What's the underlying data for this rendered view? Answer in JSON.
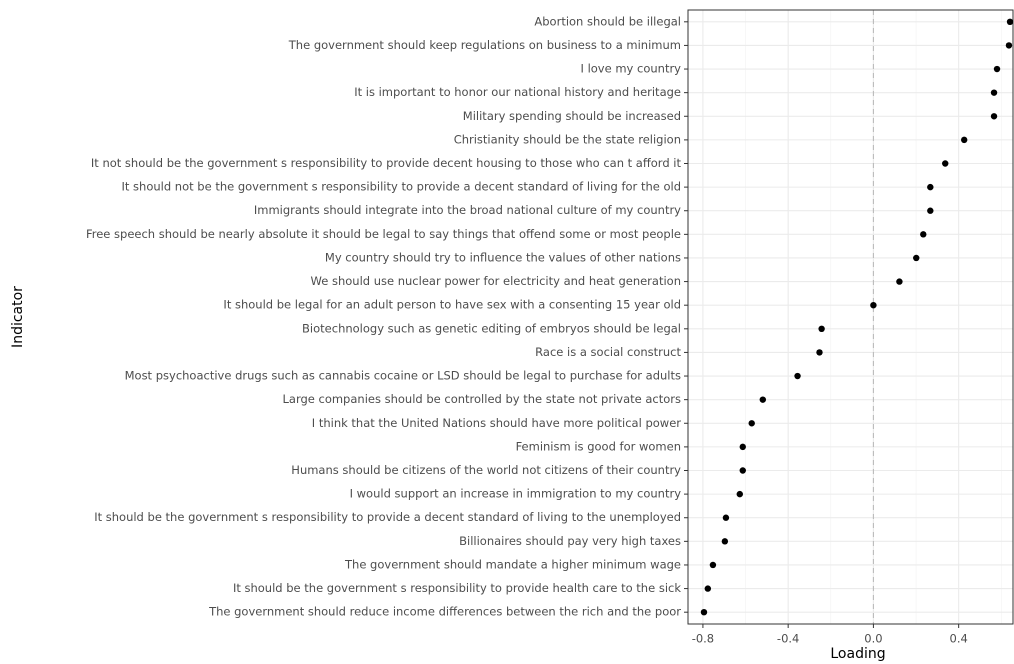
{
  "chart_data": {
    "type": "dot",
    "x_label": "Loading",
    "y_label": "Indicator",
    "categories": [
      "Abortion should be illegal",
      "The government should keep regulations on business to a minimum",
      "I love my country",
      "It is important to honor our national history and heritage",
      "Military spending should be increased",
      "Christianity should be the state religion",
      "It not should be the government s responsibility to provide decent housing to those who can t afford it",
      "It should not be the government s responsibility to provide a decent standard of living for the old",
      "Immigrants should integrate into the broad national culture of my country",
      "Free speech should be nearly absolute it should be legal to say things that offend some or most people",
      "My country should try to influence the values of other nations",
      "We should use nuclear power for electricity and heat generation",
      "It should be legal for an adult person to have sex with a consenting 15 year old",
      "Biotechnology such as genetic editing of embryos should be legal",
      "Race is a social construct",
      "Most psychoactive drugs such as cannabis cocaine or LSD should be legal to purchase for adults",
      "Large companies should be controlled by the state not private actors",
      "I think that the United Nations should have more political power",
      "Feminism is good for women",
      "Humans should be citizens of the world not citizens of their country",
      "I would support an increase in immigration to my country",
      "It should be the government s responsibility to provide a decent standard of living to the unemployed",
      "Billionaires should pay very high taxes",
      "The government should mandate a higher minimum wage",
      "It should be the government s responsibility to provide health care to the sick",
      "The government should reduce income differences between the rich and the poor"
    ],
    "values": [
      0.641,
      0.636,
      0.58,
      0.566,
      0.566,
      0.426,
      0.337,
      0.267,
      0.267,
      0.234,
      0.201,
      0.122,
      0.0,
      -0.243,
      -0.253,
      -0.356,
      -0.519,
      -0.571,
      -0.613,
      -0.613,
      -0.627,
      -0.692,
      -0.697,
      -0.753,
      -0.777,
      -0.795
    ],
    "color": "#000000",
    "xlim": [
      -0.87,
      0.655
    ],
    "xticks": [
      -0.8,
      -0.4,
      {
        "value": 0,
        "label": "0.0"
      },
      0.4
    ],
    "refline": 0,
    "grid": true
  }
}
